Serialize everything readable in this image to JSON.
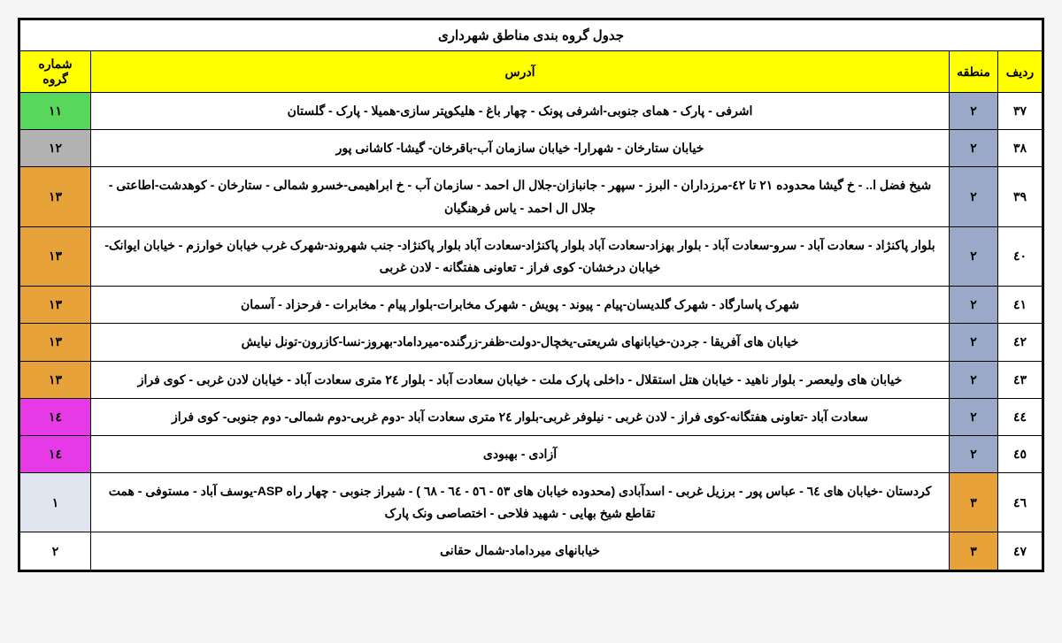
{
  "title": "جدول گروه بندی مناطق شهرداری",
  "headers": {
    "radif": "ردیف",
    "mantageh": "منطقه",
    "address": "آدرس",
    "group": "شماره گروه"
  },
  "colors": {
    "header_bg": "#ffff00",
    "mantageh2_bg": "#9aa9c7",
    "mantageh3_bg": "#e8a23a",
    "group11_bg": "#57d85c",
    "group12_bg": "#b2b2b2",
    "group13_bg": "#e8a23a",
    "group14_bg": "#e63ae6",
    "group1_bg": "#dfe4ee",
    "group2_bg": "#ffffff"
  },
  "rows": [
    {
      "radif": "٣٧",
      "mantageh": "٢",
      "mantageh_color_key": "mantageh2_bg",
      "address": "اشرفی - پارک - همای جنوبی-اشرفی پونک - چهار باغ - هلیکوپتر سازی-همیلا - پارک - گلستان",
      "group": "١١",
      "group_color_key": "group11_bg"
    },
    {
      "radif": "٣٨",
      "mantageh": "٢",
      "mantageh_color_key": "mantageh2_bg",
      "address": "خیابان ستارخان - شهرارا- خیابان سازمان آب-باقرخان- گیشا- کاشانی پور",
      "group": "١٢",
      "group_color_key": "group12_bg"
    },
    {
      "radif": "٣٩",
      "mantageh": "٢",
      "mantageh_color_key": "mantageh2_bg",
      "address": "شیخ فضل ا.. - خ گیشا محدوده ٢١ تا ٤٢-مرزداران - البرز - سپهر - جانبازان-جلال ال احمد - سازمان آب - خ ابراهیمی-خسرو شمالی - ستارخان - کوهدشت-اطاعتی - جلال ال احمد - یاس فرهنگیان",
      "group": "١٣",
      "group_color_key": "group13_bg"
    },
    {
      "radif": "٤٠",
      "mantageh": "٢",
      "mantageh_color_key": "mantageh2_bg",
      "address": "بلوار پاکنژاد - سعادت آباد - سرو-سعادت آباد - بلوار بهزاد-سعادت آباد بلوار پاکنژاد-سعادت آباد بلوار پاکنژاد- جنب شهروند-شهرک غرب خیابان خوارزم - خیابان ایوانک-خیابان درخشان- کوی فراز - تعاونی هفتگانه - لادن غربی",
      "group": "١٣",
      "group_color_key": "group13_bg"
    },
    {
      "radif": "٤١",
      "mantageh": "٢",
      "mantageh_color_key": "mantageh2_bg",
      "address": "شهرک پاسارگاد - شهرک گلدیسان-پیام - پیوند - پویش - شهرک مخابرات-بلوار پیام - مخابرات - فرحزاد - آسمان",
      "group": "١٣",
      "group_color_key": "group13_bg"
    },
    {
      "radif": "٤٢",
      "mantageh": "٢",
      "mantageh_color_key": "mantageh2_bg",
      "address": "خیابان های آفریقا - جردن-خیابانهای شریعتی-یخچال-دولت-ظفر-زرگنده-میرداماد-بهروز-نسا-کازرون-تونل نیایش",
      "group": "١٣",
      "group_color_key": "group13_bg"
    },
    {
      "radif": "٤٣",
      "mantageh": "٢",
      "mantageh_color_key": "mantageh2_bg",
      "address": "خیابان های ولیعصر - بلوار ناهید - خیابان هتل استقلال - داخلی پارک ملت - خیابان سعادت آباد - بلوار ٢٤ متری سعادت آباد - خیابان  لادن غربی - کوی فراز",
      "group": "١٣",
      "group_color_key": "group13_bg"
    },
    {
      "radif": "٤٤",
      "mantageh": "٢",
      "mantageh_color_key": "mantageh2_bg",
      "address": "سعادت آباد -تعاونی هفتگانه-کوی فراز  - لادن غربی - نیلوفر غربی-بلوار ٢٤ متری سعادت آباد  -دوم غربی-دوم شمالی- دوم جنوبی- کوی فراز",
      "group": "١٤",
      "group_color_key": "group14_bg"
    },
    {
      "radif": "٤٥",
      "mantageh": "٢",
      "mantageh_color_key": "mantageh2_bg",
      "address": "آزادی - بهبودی",
      "group": "١٤",
      "group_color_key": "group14_bg"
    },
    {
      "radif": "٤٦",
      "mantageh": "٣",
      "mantageh_color_key": "mantageh3_bg",
      "address": "کردستان -خیابان های ٦٤ - عباس پور - برزیل غربی - اسدآبادی (محدوده  خیابان های ٥٣ - ٥٦ - ٦٤ - ٦٨ ) - شیراز جنوبی - چهار راه ASP-یوسف آباد - مستوفی - همت تقاطع شیخ بهایی - شهید فلاحی - اختصاصی ونک پارک",
      "group": "١",
      "group_color_key": "group1_bg"
    },
    {
      "radif": "٤٧",
      "mantageh": "٣",
      "mantageh_color_key": "mantageh3_bg",
      "address": "خیابانهای میرداماد-شمال حقانی",
      "group": "٢",
      "group_color_key": "group2_bg"
    }
  ]
}
